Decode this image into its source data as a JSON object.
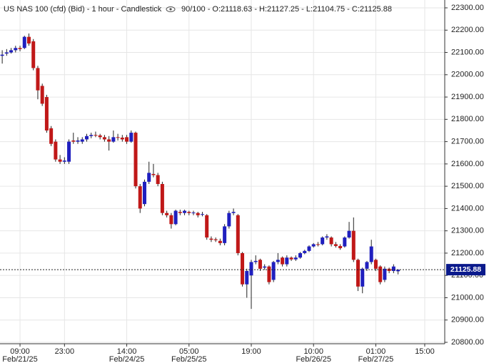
{
  "chart_data": {
    "type": "candlestick",
    "title": "US NAS 100 (cfd) (Bid) - 1 hour - Candlestick",
    "legend": "90/100 - O:21118.63 - H:21127.25 - L:21104.75 - C:21125.88",
    "categories": [
      null,
      null,
      null,
      null,
      "09:00",
      null,
      null,
      null,
      null,
      null,
      null,
      null,
      null,
      null,
      "23:00",
      null,
      null,
      null,
      null,
      null,
      null,
      null,
      null,
      null,
      null,
      null,
      null,
      null,
      "14:00",
      null,
      null,
      null,
      null,
      null,
      null,
      null,
      null,
      null,
      null,
      null,
      null,
      null,
      "05:00",
      null,
      null,
      null,
      null,
      null,
      null,
      null,
      null,
      null,
      null,
      null,
      null,
      null,
      "19:00",
      null,
      null,
      null,
      null,
      null,
      null,
      null,
      null,
      null,
      null,
      null,
      null,
      null,
      "10:00",
      null,
      null,
      null,
      null,
      null,
      null,
      null,
      null,
      null,
      null,
      null,
      null,
      null,
      "01:00",
      null,
      null,
      null,
      null,
      null,
      null,
      null,
      null,
      null,
      null,
      "15:00",
      null,
      null,
      null,
      null
    ],
    "dates": [
      null,
      null,
      null,
      null,
      "Feb/21/25",
      null,
      null,
      null,
      null,
      null,
      null,
      null,
      null,
      null,
      null,
      null,
      null,
      null,
      null,
      null,
      null,
      null,
      null,
      null,
      null,
      null,
      null,
      null,
      "Feb/24/25",
      null,
      null,
      null,
      null,
      null,
      null,
      null,
      null,
      null,
      null,
      null,
      null,
      null,
      "Feb/25/25",
      null,
      null,
      null,
      null,
      null,
      null,
      null,
      null,
      null,
      null,
      null,
      null,
      null,
      null,
      null,
      null,
      null,
      null,
      null,
      null,
      null,
      null,
      null,
      null,
      null,
      null,
      null,
      "Feb/26/25",
      null,
      null,
      null,
      null,
      null,
      null,
      null,
      null,
      null,
      null,
      null,
      null,
      null,
      "Feb/27/25",
      null,
      null,
      null,
      null,
      null,
      null,
      null,
      null,
      null,
      null,
      null,
      null,
      null,
      null,
      null
    ],
    "open": [
      22085,
      22095,
      22100,
      22110,
      22120,
      22120,
      22170,
      22150,
      22030,
      21950,
      21900,
      21760,
      21700,
      21620,
      21610,
      21610,
      21705,
      21700,
      21700,
      21710,
      21725,
      21730,
      21728,
      21720,
      21710,
      21700,
      21720,
      21718,
      21720,
      21700,
      21740,
      21500,
      21420,
      21520,
      21555,
      21550,
      21510,
      21380,
      21370,
      21330,
      21385,
      21380,
      21385,
      21380,
      21380,
      21372,
      21370,
      21265,
      21262,
      21255,
      21245,
      21320,
      21380,
      21370,
      21200,
      21060,
      21100,
      21160,
      21170,
      21135,
      21140,
      21080,
      21160,
      21180,
      21150,
      21180,
      21172,
      21180,
      21200,
      21210,
      21230,
      21240,
      21240,
      21270,
      21270,
      21240,
      21232,
      21230,
      21270,
      21300,
      21170,
      21050,
      21130,
      21160,
      21170,
      21140,
      21080,
      21130,
      21120,
      21118.63,
      null,
      null,
      null,
      null,
      null,
      null,
      null,
      null,
      null,
      null
    ],
    "high": [
      22110,
      22115,
      22120,
      22130,
      22130,
      22175,
      22185,
      22160,
      22040,
      21960,
      21910,
      21770,
      21710,
      21640,
      21630,
      21710,
      21740,
      21720,
      21720,
      21735,
      21740,
      21745,
      21735,
      21730,
      21725,
      21750,
      21735,
      21730,
      21730,
      21750,
      21745,
      21510,
      21530,
      21610,
      21600,
      21560,
      21520,
      21390,
      21380,
      21395,
      21395,
      21395,
      21390,
      21390,
      21385,
      21385,
      21375,
      21275,
      21270,
      21265,
      21330,
      21390,
      21400,
      21375,
      21205,
      21130,
      21170,
      21190,
      21175,
      21150,
      21145,
      21165,
      21200,
      21185,
      21190,
      21185,
      21190,
      21205,
      21215,
      21235,
      21245,
      21250,
      21275,
      21285,
      21275,
      21250,
      21240,
      21275,
      21340,
      21360,
      21175,
      21135,
      21165,
      21260,
      21175,
      21145,
      21140,
      21135,
      21150,
      21127.25,
      null,
      null,
      null,
      null,
      null,
      null,
      null,
      null,
      null,
      null
    ],
    "low": [
      22050,
      22085,
      22095,
      22100,
      22105,
      22115,
      22130,
      22020,
      21890,
      21860,
      21740,
      21680,
      21610,
      21600,
      21600,
      21600,
      21690,
      21690,
      21690,
      21700,
      21715,
      21720,
      21710,
      21700,
      21660,
      21695,
      21705,
      21700,
      21690,
      21695,
      21490,
      21380,
      21410,
      21510,
      21540,
      21500,
      21370,
      21360,
      21310,
      21325,
      21370,
      21370,
      21370,
      21370,
      21360,
      21365,
      21260,
      21250,
      21250,
      21235,
      21235,
      21310,
      21370,
      21190,
      21050,
      21000,
      20950,
      21150,
      21120,
      21125,
      21060,
      21070,
      21150,
      21140,
      21140,
      21165,
      21165,
      21175,
      21195,
      21205,
      21225,
      21230,
      21235,
      21260,
      21230,
      21225,
      21215,
      21225,
      21265,
      21160,
      21030,
      21020,
      21120,
      21150,
      21120,
      21060,
      21070,
      21110,
      21110,
      21104.75,
      null,
      null,
      null,
      null,
      null,
      null,
      null,
      null,
      null,
      null
    ],
    "close": [
      22090,
      22100,
      22110,
      22120,
      22115,
      22170,
      22140,
      22030,
      21930,
      21870,
      21750,
      21690,
      21620,
      21610,
      21615,
      21700,
      21700,
      21705,
      21710,
      21725,
      21730,
      21728,
      21720,
      21710,
      21700,
      21720,
      21718,
      21710,
      21700,
      21740,
      21500,
      21400,
      21520,
      21560,
      21550,
      21510,
      21380,
      21370,
      21330,
      21390,
      21380,
      21390,
      21380,
      21382,
      21370,
      21375,
      21270,
      21260,
      21258,
      21245,
      21320,
      21380,
      21385,
      21200,
      21060,
      21120,
      21160,
      21165,
      21130,
      21140,
      21070,
      21160,
      21170,
      21150,
      21180,
      21172,
      21180,
      21200,
      21210,
      21230,
      21240,
      21238,
      21270,
      21275,
      21240,
      21232,
      21222,
      21270,
      21300,
      21170,
      21050,
      21130,
      21160,
      21230,
      21130,
      21070,
      21130,
      21120,
      21140,
      21125.88,
      null,
      null,
      null,
      null,
      null,
      null,
      null,
      null,
      null,
      null
    ],
    "up_color": "#1f1fbf",
    "down_color": "#c01818",
    "last_price": {
      "value": 21125.88,
      "label": "21125.88"
    },
    "ylim": [
      20800,
      22300
    ],
    "yticks": [
      {
        "value": 20800,
        "label": "20800.00"
      },
      {
        "value": 20900,
        "label": "20900.00"
      },
      {
        "value": 21000,
        "label": "21000.00"
      },
      {
        "value": 21100,
        "label": "21100.00"
      },
      {
        "value": 21200,
        "label": "21200.00"
      },
      {
        "value": 21300,
        "label": "21300.00"
      },
      {
        "value": 21400,
        "label": "21400.00"
      },
      {
        "value": 21500,
        "label": "21500.00"
      },
      {
        "value": 21600,
        "label": "21600.00"
      },
      {
        "value": 21700,
        "label": "21700.00"
      },
      {
        "value": 21800,
        "label": "21800.00"
      },
      {
        "value": 21900,
        "label": "21900.00"
      },
      {
        "value": 22000,
        "label": "22000.00"
      },
      {
        "value": 22100,
        "label": "22100.00"
      },
      {
        "value": 22200,
        "label": "22200.00"
      },
      {
        "value": 22300,
        "label": "22300.00"
      }
    ],
    "grid": true
  }
}
